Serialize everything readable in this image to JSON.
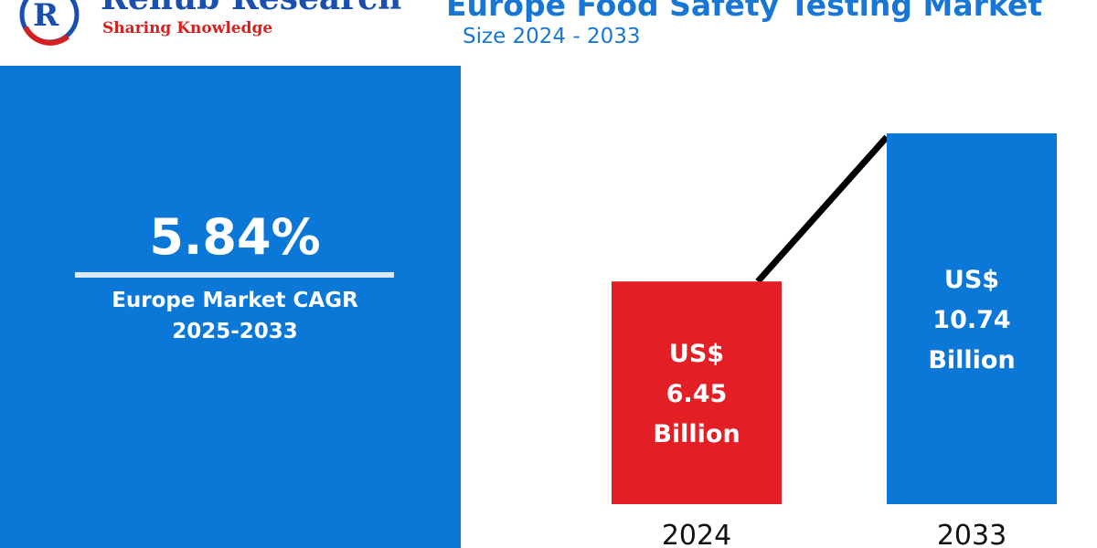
{
  "header": {
    "brand": "Renub Research",
    "tagline": "Sharing Knowledge",
    "title": "Europe Food Safety Testing Market",
    "subtitle": "Size 2024 - 2033"
  },
  "cagr": {
    "value": "5.84%",
    "label_line1": "Europe Market CAGR",
    "label_line2": "2025-2033"
  },
  "colors": {
    "primary_blue": "#0b78d8",
    "bar_2024": "#e31e24",
    "bar_2033": "#0b78d8",
    "logo_red": "#d61f1f",
    "logo_blue": "#1a4fb0"
  },
  "chart_data": {
    "type": "bar",
    "categories": [
      "2024",
      "2033"
    ],
    "values": [
      6.45,
      10.74
    ],
    "bar_labels": [
      [
        "US$",
        "6.45",
        "Billion"
      ],
      [
        "US$",
        "10.74",
        "Billion"
      ]
    ],
    "bar_colors": [
      "#e31e24",
      "#0b78d8"
    ],
    "trend_line": true,
    "unit": "US$ Billion"
  }
}
